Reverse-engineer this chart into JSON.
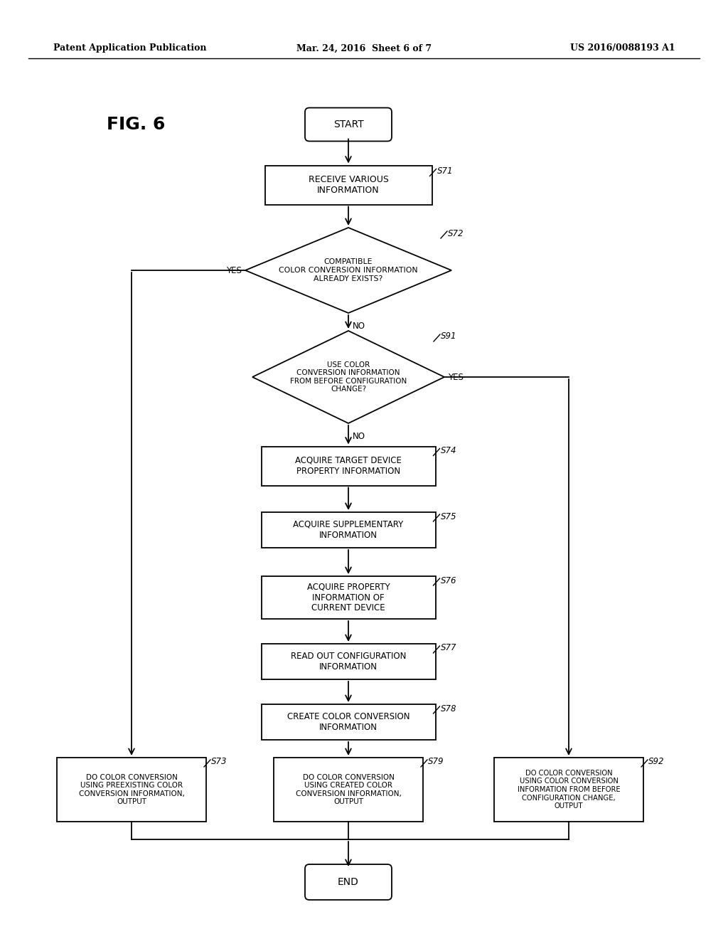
{
  "bg_color": "#ffffff",
  "header_left": "Patent Application Publication",
  "header_center": "Mar. 24, 2016  Sheet 6 of 7",
  "header_right": "US 2016/0088193 A1",
  "fig_label": "FIG. 6"
}
